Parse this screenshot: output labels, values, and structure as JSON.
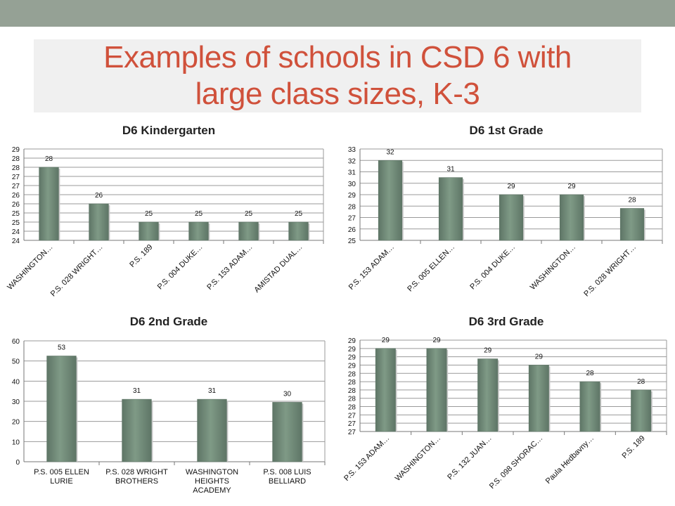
{
  "slide": {
    "title": "Examples of schools in CSD 6 with large class sizes, K-3",
    "colors": {
      "band": "#95a195",
      "title": "#d0513b",
      "bar": "#7f9a86",
      "bar_shade": "#5e7566"
    }
  },
  "chart_data": [
    {
      "type": "bar",
      "title": "D6 Kindergarten",
      "categories": [
        "WASHINGTON…",
        "P.S. 028 WRIGHT…",
        "P.S. 189",
        "P.S. 004 DUKE…",
        "P.S. 153 ADAM…",
        "AMISTAD DUAL…"
      ],
      "values": [
        28,
        26,
        25,
        25,
        25,
        25
      ],
      "value_labels": [
        "28",
        "26",
        "25",
        "25",
        "25",
        "25"
      ],
      "ylim": [
        24,
        29
      ],
      "yticks": [
        24,
        24.5,
        25,
        25.5,
        26,
        26.5,
        27,
        27.5,
        28,
        28.5,
        29
      ],
      "ytick_labels": [
        "24",
        "24",
        "25",
        "25",
        "26",
        "26",
        "27",
        "27",
        "28",
        "28",
        "29"
      ],
      "grid": true,
      "category_labels_rotated": true
    },
    {
      "type": "bar",
      "title": "D6 1st Grade",
      "categories": [
        "P.S. 153 ADAM…",
        "P.S. 005 ELLEN…",
        "P.S. 004 DUKE…",
        "WASHINGTON…",
        "P.S. 028 WRIGHT…"
      ],
      "values": [
        32,
        30.5,
        29,
        29,
        27.8
      ],
      "value_labels": [
        "32",
        "31",
        "29",
        "29",
        "28"
      ],
      "ylim": [
        25,
        33
      ],
      "yticks": [
        25,
        26,
        27,
        28,
        29,
        30,
        31,
        32,
        33
      ],
      "ytick_labels": [
        "25",
        "26",
        "27",
        "28",
        "29",
        "30",
        "31",
        "32",
        "33"
      ],
      "grid": true,
      "category_labels_rotated": true
    },
    {
      "type": "bar",
      "title": "D6 2nd Grade",
      "categories": [
        "P.S. 005 ELLEN LURIE",
        "P.S. 028 WRIGHT BROTHERS",
        "WASHINGTON HEIGHTS ACADEMY",
        "P.S. 008 LUIS BELLIARD"
      ],
      "values": [
        52.5,
        31,
        31,
        29.5
      ],
      "value_labels": [
        "53",
        "31",
        "31",
        "30"
      ],
      "ylim": [
        0,
        60
      ],
      "yticks": [
        0,
        10,
        20,
        30,
        40,
        50,
        60
      ],
      "ytick_labels": [
        "0",
        "10",
        "20",
        "30",
        "40",
        "50",
        "60"
      ],
      "grid": true,
      "category_labels_rotated": false
    },
    {
      "type": "bar",
      "title": "D6 3rd Grade",
      "categories": [
        "P.S. 153 ADAM…",
        "WASHINGTON…",
        "P.S. 132 JUAN…",
        "P.S. 098 SHORAC…",
        "Paula Hedbavny…",
        "P.S. 189"
      ],
      "values": [
        29,
        29,
        28.75,
        28.6,
        28.2,
        28
      ],
      "value_labels": [
        "29",
        "29",
        "29",
        "29",
        "28",
        "28"
      ],
      "ylim": [
        27,
        29.2
      ],
      "yticks": [
        27,
        27.2,
        27.4,
        27.6,
        27.8,
        28,
        28.2,
        28.4,
        28.6,
        28.8,
        29,
        29.2
      ],
      "ytick_labels": [
        "27",
        "27",
        "27",
        "28",
        "28",
        "28",
        "28",
        "28",
        "29",
        "29",
        "29",
        "29"
      ],
      "grid": true,
      "category_labels_rotated": true
    }
  ]
}
